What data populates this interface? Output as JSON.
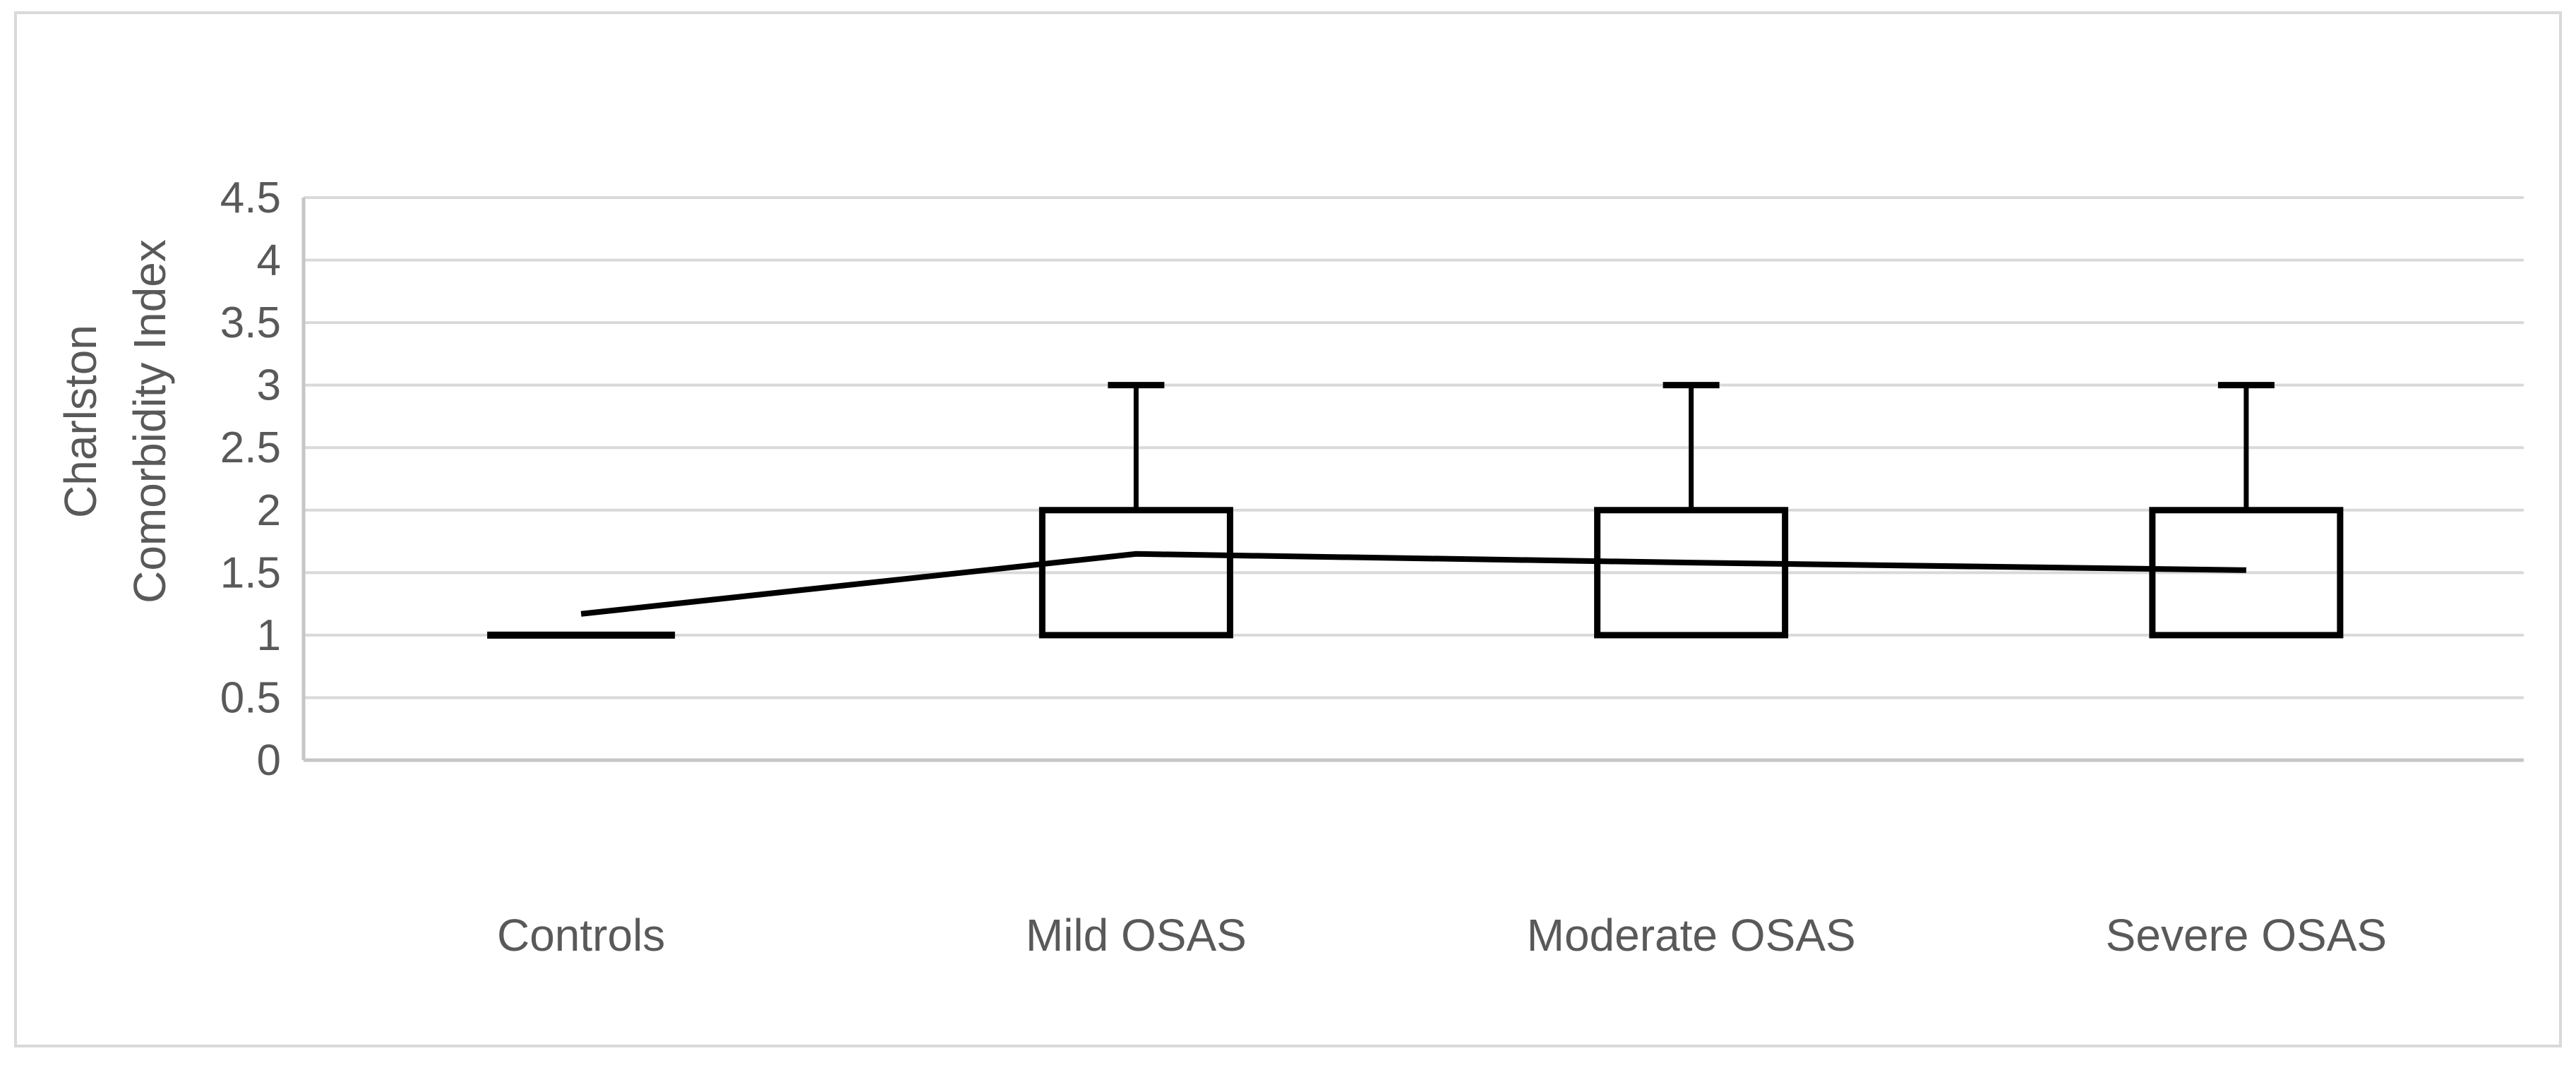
{
  "figure": {
    "background_color": "#ffffff",
    "border_color": "#d9d9d9"
  },
  "chart_data": {
    "type": "box",
    "title": "",
    "ylabel": "Charlston Comorbidity Index",
    "xlabel": "",
    "grid": true,
    "legend": false,
    "colors": {
      "gridline": "#d9d9d9",
      "axis_line": "#c6c6c6",
      "series_stroke": "#000000",
      "text": "#595959"
    },
    "y_axis": {
      "label_lines": [
        "Charlston",
        "Comorbidity Index"
      ],
      "min": 0,
      "max": 4.5,
      "step": 0.5,
      "tick_values": [
        4.5,
        4,
        3.5,
        3,
        2.5,
        2,
        1.5,
        1,
        0.5,
        0
      ],
      "tick_labels": [
        "4.5",
        "4",
        "3.5",
        "3",
        "2.5",
        "2",
        "1.5",
        "1",
        "0.5",
        "0"
      ]
    },
    "categories": [
      "Controls",
      "Mild OSAS",
      "Moderate OSAS",
      "Severe OSAS"
    ],
    "groups": [
      {
        "label": "Controls",
        "type": "median-only",
        "median": 1,
        "mean": 1.17
      },
      {
        "label": "Mild OSAS",
        "type": "box",
        "q1": 1,
        "q3": 2,
        "whisker_high": 3,
        "mean": 1.65
      },
      {
        "label": "Moderate OSAS",
        "type": "box",
        "q1": 1,
        "q3": 2,
        "whisker_high": 3,
        "mean": 1.58
      },
      {
        "label": "Severe OSAS",
        "type": "box",
        "q1": 1,
        "q3": 2,
        "whisker_high": 3,
        "mean": 1.52
      }
    ],
    "mean_series": {
      "name": "mean-line",
      "values": [
        1.17,
        1.65,
        1.58,
        1.52
      ]
    }
  }
}
